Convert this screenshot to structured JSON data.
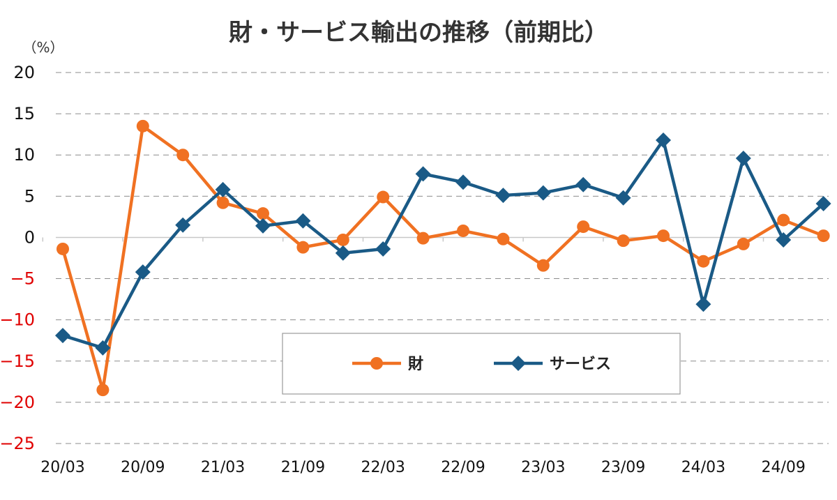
{
  "chart_data": {
    "type": "line",
    "title": "財・サービス輸出の推移（前期比）",
    "ylabel": "（%）",
    "ylim": [
      -25,
      20
    ],
    "yticks": [
      20,
      15,
      10,
      5,
      0,
      -5,
      -10,
      -15,
      -20,
      -25
    ],
    "negative_tick_color": "#e00000",
    "grid": "horizontal dashed",
    "legend": "bottom-center",
    "x": [
      "20/03",
      "20/06",
      "20/09",
      "20/12",
      "21/03",
      "21/06",
      "21/09",
      "21/12",
      "22/03",
      "22/06",
      "22/09",
      "22/12",
      "23/03",
      "23/06",
      "23/09",
      "23/12",
      "24/03",
      "24/06",
      "24/09",
      "24/12"
    ],
    "xtick_labels": [
      "20/03",
      "20/09",
      "21/03",
      "21/09",
      "22/03",
      "22/09",
      "23/03",
      "23/09",
      "24/03",
      "24/09"
    ],
    "series": [
      {
        "name": "財",
        "color": "#f07122",
        "marker": "circle",
        "values": [
          -1.4,
          -18.5,
          13.5,
          10.0,
          4.2,
          2.9,
          -1.2,
          -0.3,
          4.9,
          -0.1,
          0.8,
          -0.2,
          -3.4,
          1.3,
          -0.4,
          0.2,
          -2.9,
          -0.8,
          2.1,
          0.2
        ]
      },
      {
        "name": "サービス",
        "color": "#1a5a86",
        "marker": "diamond",
        "values": [
          -11.9,
          -13.4,
          -4.2,
          1.5,
          5.8,
          1.4,
          2.0,
          -1.9,
          -1.4,
          7.7,
          6.7,
          5.1,
          5.4,
          6.4,
          4.8,
          11.8,
          -8.1,
          9.6,
          -0.3,
          4.1
        ]
      }
    ]
  }
}
